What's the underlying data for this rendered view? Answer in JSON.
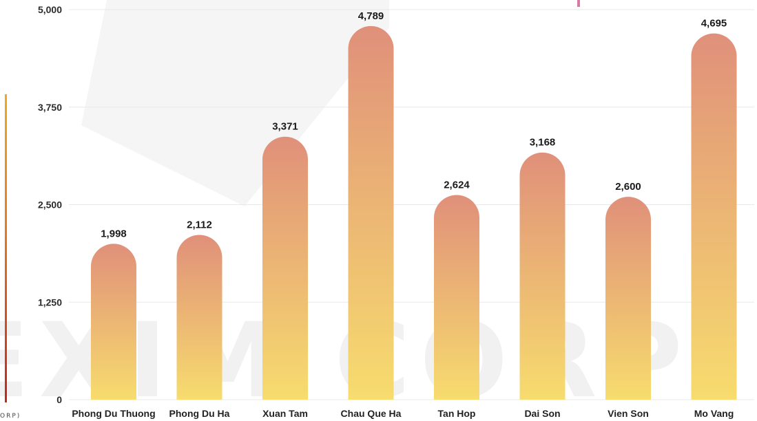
{
  "watermark": {
    "text": "EXIM CORP",
    "corner_text": "ORP)"
  },
  "colors": {
    "bar_top": "#e0907a",
    "bar_bottom": "#f7dc6e",
    "grid": "#e8e8e8",
    "axis_text": "#2b2b2b"
  },
  "chart_data": {
    "type": "bar",
    "title": "",
    "xlabel": "",
    "ylabel": "",
    "categories": [
      "Phong Du Thuong",
      "Phong Du Ha",
      "Xuan Tam",
      "Chau Que Ha",
      "Tan Hop",
      "Dai Son",
      "Vien Son",
      "Mo Vang"
    ],
    "values": [
      1998,
      2112,
      3371,
      4789,
      2624,
      3168,
      2600,
      4695
    ],
    "value_labels": [
      "1,998",
      "2,112",
      "3,371",
      "4,789",
      "2,624",
      "3,168",
      "2,600",
      "4,695"
    ],
    "ylim": [
      0,
      5000
    ],
    "yticks": [
      0,
      1250,
      2500,
      3750,
      5000
    ],
    "ytick_labels": [
      "0",
      "1,250",
      "2,500",
      "3,750",
      "5,000"
    ],
    "grid": true,
    "legend": "none"
  }
}
